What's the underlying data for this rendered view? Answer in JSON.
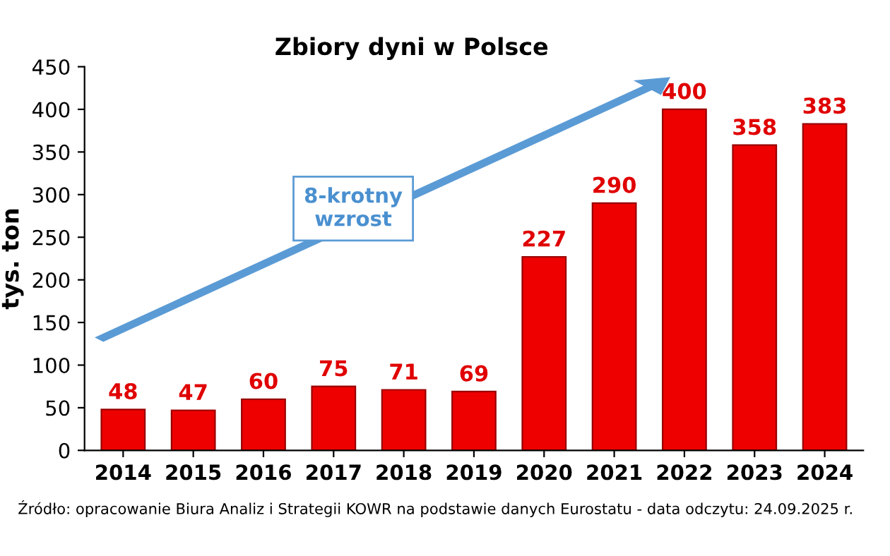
{
  "chart_data": {
    "type": "bar",
    "title": "Zbiory dyni w Polsce",
    "ylabel": "tys. ton",
    "categories": [
      "2014",
      "2015",
      "2016",
      "2017",
      "2018",
      "2019",
      "2020",
      "2021",
      "2022",
      "2023",
      "2024"
    ],
    "values": [
      48,
      47,
      60,
      75,
      71,
      69,
      227,
      290,
      400,
      358,
      383
    ],
    "color": "#ee0000",
    "data_labels": true,
    "ylim": [
      0,
      450
    ],
    "yticks": [
      0,
      50,
      100,
      150,
      200,
      250,
      300,
      350,
      400,
      450
    ],
    "grid": false,
    "annotations": [
      "8-krotny\nwzrost",
      "Źródło: opracowanie Biura Analiz i Strategii KOWR na podstawie danych Eurostatu - data odczytu: 24.09.2025 r."
    ]
  }
}
